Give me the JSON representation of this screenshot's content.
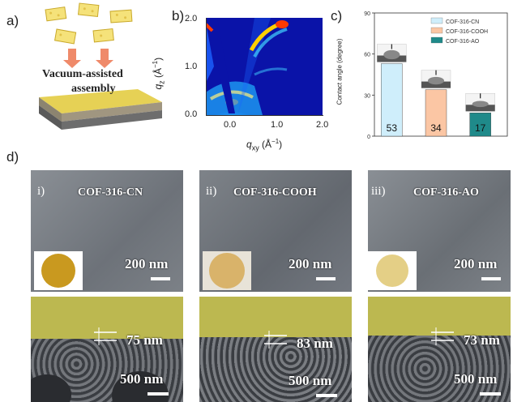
{
  "panel_labels": {
    "a": "a)",
    "b": "b)",
    "c": "c)",
    "d": "d)"
  },
  "panel_a": {
    "text_line1": "Vacuum-assisted",
    "text_line2": "assembly"
  },
  "panel_b": {
    "y_axis_label": "q",
    "y_axis_sub": "z",
    "y_axis_unit": " (Å",
    "y_axis_unit_sup": "−1",
    "y_axis_close": ")",
    "x_axis_label": "q",
    "x_axis_sub": "xy",
    "x_axis_unit": " (Å",
    "x_axis_unit_sup": "−1",
    "x_axis_close": ")",
    "x_ticks": [
      "0.0",
      "1.0",
      "2.0"
    ],
    "y_ticks": [
      "0.0",
      "1.0",
      "2.0"
    ]
  },
  "chart_data": {
    "type": "bar",
    "categories": [
      "COF-316-CN",
      "COF-316-COOH",
      "COF-316-AO"
    ],
    "values": [
      53,
      34,
      17
    ],
    "ylabel": "Contact angle (degree)",
    "ylim": [
      0,
      90
    ],
    "yticks": [
      "0",
      "30",
      "60",
      "90"
    ],
    "legend": [
      "COF-316-CN",
      "COF-316-COOH",
      "COF-316-AO"
    ],
    "legend_placement": "top-right",
    "colors": [
      "#cfeefb",
      "#fbc6a4",
      "#1f8a8a"
    ],
    "value_labels": [
      "53",
      "34",
      "17"
    ]
  },
  "panel_d": {
    "top_row": [
      {
        "index": "i)",
        "title": "COF-316-CN",
        "scale": "200 nm",
        "inset_color": "#c9991f"
      },
      {
        "index": "ii)",
        "title": "COF-316-COOH",
        "scale": "200 nm",
        "inset_color": "#d9b36a"
      },
      {
        "index": "iii)",
        "title": "COF-316-AO",
        "scale": "200 nm",
        "inset_color": "#e4cf86"
      }
    ],
    "bottom_row": [
      {
        "thickness": "75 nm",
        "scale": "500 nm"
      },
      {
        "thickness": "83 nm",
        "scale": "500 nm"
      },
      {
        "thickness": "73 nm",
        "scale": "500 nm"
      }
    ]
  }
}
